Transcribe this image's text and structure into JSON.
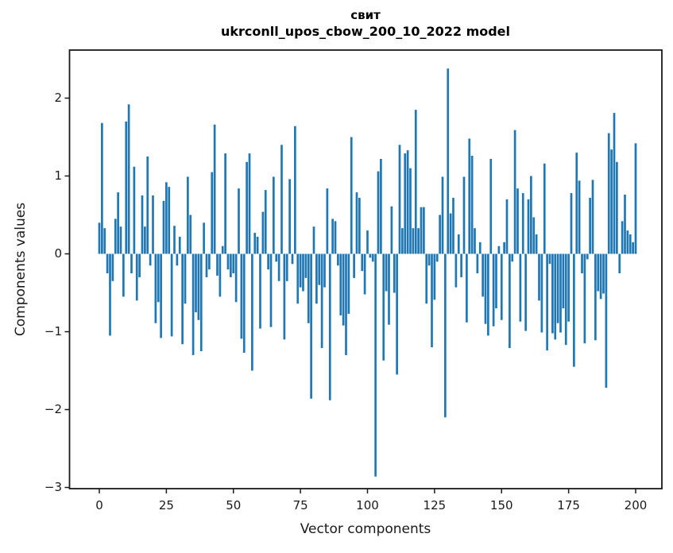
{
  "figure": {
    "background": "#ffffff",
    "text_color": "#1a1a1a"
  },
  "chart_data": {
    "type": "bar",
    "title": "свит",
    "subtitle": "ukrconll_upos_cbow_200_10_2022 model",
    "xlabel": "Vector components",
    "ylabel": "Components values",
    "bar_color": "#1f77b4",
    "axis_color": "#1a1a1a",
    "grid": false,
    "legend": false,
    "n_components": 201,
    "x_ticks": [
      0,
      25,
      50,
      75,
      100,
      125,
      150,
      175,
      200
    ],
    "y_ticks": [
      2,
      1,
      0,
      -1,
      -2,
      -3
    ],
    "xlim": [
      -10.4,
      210.4
    ],
    "ylim": [
      -3.03,
      2.62
    ],
    "values": [
      0.4,
      1.68,
      0.33,
      -0.25,
      -1.05,
      -0.35,
      0.45,
      0.79,
      0.35,
      -0.55,
      1.7,
      1.92,
      -0.25,
      1.12,
      -0.6,
      -0.3,
      0.75,
      0.35,
      1.25,
      -0.15,
      0.75,
      -0.89,
      -0.62,
      -1.08,
      0.68,
      0.92,
      0.86,
      -1.06,
      0.36,
      -0.15,
      0.22,
      -1.16,
      -0.64,
      0.99,
      0.5,
      -1.3,
      -0.75,
      -0.85,
      -1.25,
      0.4,
      -0.3,
      -0.2,
      1.05,
      1.66,
      -0.28,
      -0.55,
      0.1,
      1.29,
      -0.2,
      -0.3,
      -0.25,
      -0.62,
      0.84,
      -1.09,
      -1.27,
      1.18,
      1.29,
      -1.5,
      0.27,
      0.22,
      -0.96,
      0.54,
      0.82,
      -0.2,
      -0.94,
      0.99,
      -0.1,
      -0.35,
      1.4,
      -1.1,
      -0.35,
      0.96,
      -0.13,
      1.64,
      -0.64,
      -0.43,
      -0.48,
      -0.31,
      -0.89,
      -1.86,
      0.35,
      -0.64,
      -0.4,
      -1.21,
      -0.43,
      0.84,
      -1.88,
      0.45,
      0.42,
      -0.15,
      -0.79,
      -0.92,
      -1.3,
      -0.77,
      1.5,
      -0.31,
      0.79,
      0.72,
      -0.22,
      -0.52,
      0.3,
      -0.05,
      -0.1,
      -2.86,
      1.06,
      1.22,
      -1.37,
      -0.48,
      -0.91,
      0.61,
      -0.5,
      -1.55,
      1.4,
      0.33,
      1.29,
      1.33,
      1.1,
      0.33,
      1.85,
      0.33,
      0.6,
      0.6,
      -0.64,
      -0.15,
      -1.2,
      -0.59,
      -0.1,
      0.5,
      0.99,
      -2.1,
      2.38,
      0.52,
      0.72,
      -0.43,
      0.25,
      -0.3,
      0.99,
      -0.88,
      1.48,
      1.26,
      0.33,
      -0.25,
      0.15,
      -0.55,
      -0.9,
      -1.05,
      1.22,
      -0.93,
      -0.7,
      0.1,
      -0.85,
      0.15,
      0.7,
      -1.21,
      -0.1,
      1.59,
      0.84,
      -0.87,
      0.78,
      -0.99,
      0.7,
      1.0,
      0.47,
      0.25,
      -0.6,
      -1.01,
      1.16,
      -1.24,
      -0.13,
      -1.02,
      -1.1,
      -0.89,
      -1.01,
      -0.7,
      -1.17,
      -0.87,
      0.78,
      -1.45,
      1.3,
      0.94,
      -0.25,
      -1.15,
      -0.07,
      0.72,
      0.95,
      -1.11,
      -0.48,
      -0.58,
      -0.51,
      -1.72,
      1.55,
      1.34,
      1.81,
      1.18,
      -0.25,
      0.42,
      0.76,
      0.3,
      0.25,
      0.15,
      1.42
    ]
  }
}
